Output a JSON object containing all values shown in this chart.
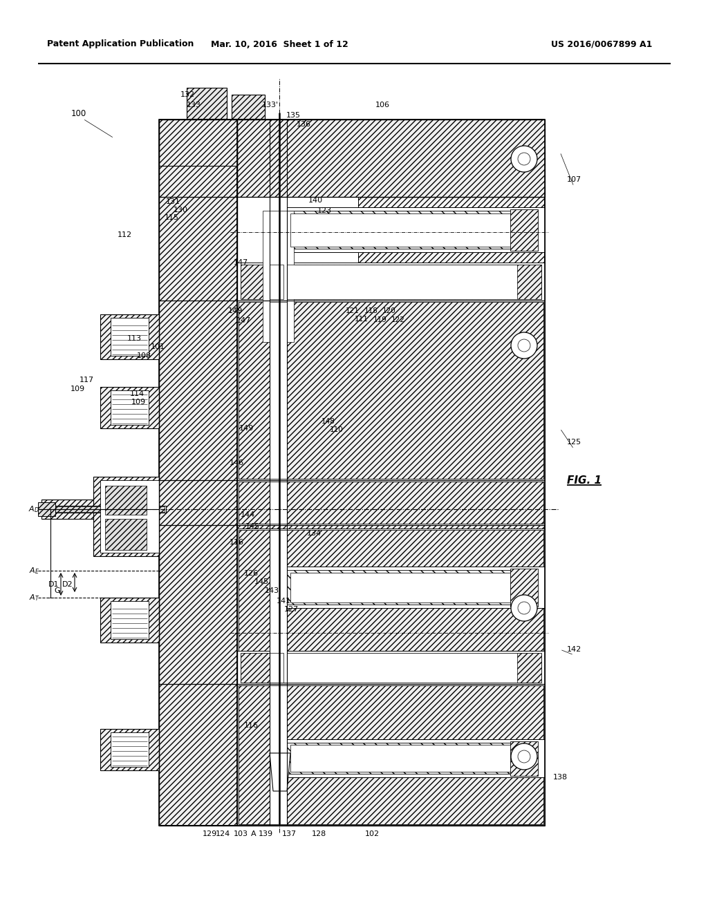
{
  "header_left": "Patent Application Publication",
  "header_center": "Mar. 10, 2016  Sheet 1 of 12",
  "header_right": "US 2016/0067899 A1",
  "fig_label": "FIG. 1",
  "bg_color": "#ffffff",
  "line_color": "#000000"
}
